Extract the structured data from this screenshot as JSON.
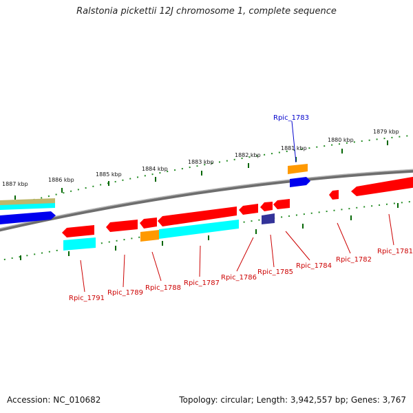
{
  "title": "Ralstonia pickettii 12J chromosome 1, complete sequence",
  "footer": {
    "accession": "Accession: NC_010682",
    "summary": "Topology: circular; Length: 3,942,557 bp; Genes: 3,767"
  },
  "colors": {
    "forward_strand": "#ff0000",
    "reverse_strand": "#ff0000",
    "blue_gene": "#0000ee",
    "cyan_gene": "#00ffff",
    "orange_gene": "#ff9900",
    "navy_gene": "#333399",
    "khaki_gene": "#bdb76b",
    "label_red": "#cc0000",
    "label_blue": "#0000cc",
    "tick_green": "#006600",
    "backbone": "#808080"
  },
  "kbp_labels": [
    "1887 kbp",
    "1886 kbp",
    "1885 kbp",
    "1884 kbp",
    "1883 kbp",
    "1882 kbp",
    "1881 kbp",
    "1880 kbp",
    "1879 kbp"
  ],
  "gene_labels": [
    "Rpic_1783",
    "Rpic_1791",
    "Rpic_1789",
    "Rpic_1788",
    "Rpic_1787",
    "Rpic_1786",
    "Rpic_1785",
    "Rpic_1784",
    "Rpic_1782",
    "Rpic_1781"
  ]
}
